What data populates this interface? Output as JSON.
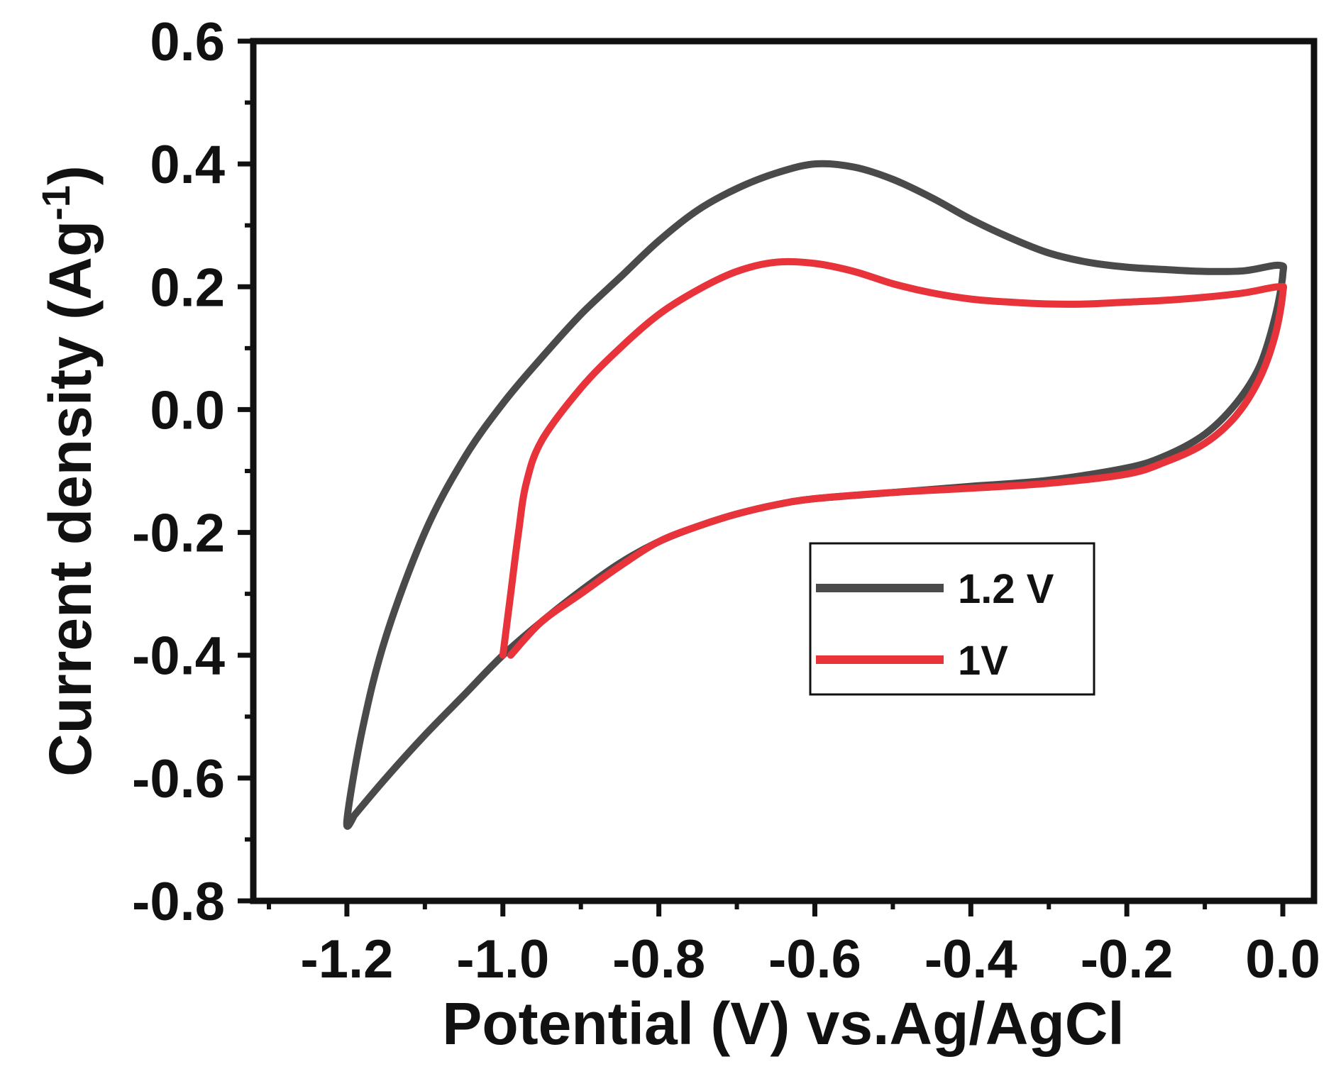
{
  "chart_data": {
    "type": "line",
    "title": "",
    "xlabel": "Potential (V) vs.Ag/AgCl",
    "ylabel": {
      "main": "Current density (Ag",
      "superscript": "-1",
      "close": ")"
    },
    "xlim": [
      -1.32,
      0.04
    ],
    "ylim": [
      -0.8,
      0.6
    ],
    "xticks": [
      -1.2,
      -1.0,
      -0.8,
      -0.6,
      -0.4,
      -0.2,
      0.0
    ],
    "xtick_labels": [
      "-1.2",
      "-1.0",
      "-0.8",
      "-0.6",
      "-0.4",
      "-0.2",
      "0.0"
    ],
    "yticks": [
      0.6,
      0.4,
      0.2,
      0.0,
      -0.2,
      -0.4,
      -0.6,
      -0.8
    ],
    "ytick_labels": [
      "0.6",
      "0.4",
      "0.2",
      "0.0",
      "-0.2",
      "-0.4",
      "-0.6",
      "-0.8"
    ],
    "grid": false,
    "legend_position": "right",
    "series": [
      {
        "name": "1.2 V",
        "color": "#4a4a4a",
        "points": [
          [
            -1.19,
            -0.66
          ],
          [
            -1.15,
            -0.6
          ],
          [
            -1.1,
            -0.53
          ],
          [
            -1.05,
            -0.465
          ],
          [
            -1.0,
            -0.4
          ],
          [
            -0.95,
            -0.345
          ],
          [
            -0.9,
            -0.295
          ],
          [
            -0.85,
            -0.25
          ],
          [
            -0.8,
            -0.215
          ],
          [
            -0.75,
            -0.19
          ],
          [
            -0.7,
            -0.17
          ],
          [
            -0.65,
            -0.155
          ],
          [
            -0.6,
            -0.145
          ],
          [
            -0.5,
            -0.135
          ],
          [
            -0.4,
            -0.125
          ],
          [
            -0.3,
            -0.115
          ],
          [
            -0.2,
            -0.095
          ],
          [
            -0.15,
            -0.075
          ],
          [
            -0.1,
            -0.04
          ],
          [
            -0.06,
            0.01
          ],
          [
            -0.03,
            0.07
          ],
          [
            -0.01,
            0.15
          ],
          [
            0.0,
            0.22
          ],
          [
            -0.005,
            0.235
          ],
          [
            -0.05,
            0.226
          ],
          [
            -0.1,
            0.225
          ],
          [
            -0.15,
            0.228
          ],
          [
            -0.2,
            0.232
          ],
          [
            -0.25,
            0.24
          ],
          [
            -0.3,
            0.255
          ],
          [
            -0.35,
            0.28
          ],
          [
            -0.4,
            0.31
          ],
          [
            -0.45,
            0.345
          ],
          [
            -0.5,
            0.375
          ],
          [
            -0.55,
            0.395
          ],
          [
            -0.6,
            0.4
          ],
          [
            -0.65,
            0.385
          ],
          [
            -0.7,
            0.36
          ],
          [
            -0.75,
            0.325
          ],
          [
            -0.8,
            0.275
          ],
          [
            -0.85,
            0.215
          ],
          [
            -0.9,
            0.155
          ],
          [
            -0.95,
            0.085
          ],
          [
            -1.0,
            0.01
          ],
          [
            -1.05,
            -0.08
          ],
          [
            -1.1,
            -0.2
          ],
          [
            -1.15,
            -0.37
          ],
          [
            -1.18,
            -0.52
          ],
          [
            -1.2,
            -0.67
          ],
          [
            -1.19,
            -0.66
          ]
        ]
      },
      {
        "name": "1V",
        "color": "#e8333a",
        "points": [
          [
            -0.99,
            -0.4
          ],
          [
            -0.95,
            -0.345
          ],
          [
            -0.9,
            -0.3
          ],
          [
            -0.85,
            -0.255
          ],
          [
            -0.8,
            -0.215
          ],
          [
            -0.75,
            -0.19
          ],
          [
            -0.7,
            -0.17
          ],
          [
            -0.65,
            -0.155
          ],
          [
            -0.6,
            -0.145
          ],
          [
            -0.5,
            -0.135
          ],
          [
            -0.4,
            -0.128
          ],
          [
            -0.3,
            -0.12
          ],
          [
            -0.2,
            -0.105
          ],
          [
            -0.15,
            -0.085
          ],
          [
            -0.1,
            -0.055
          ],
          [
            -0.06,
            -0.01
          ],
          [
            -0.03,
            0.05
          ],
          [
            -0.01,
            0.12
          ],
          [
            0.0,
            0.19
          ],
          [
            -0.005,
            0.2
          ],
          [
            -0.05,
            0.19
          ],
          [
            -0.1,
            0.183
          ],
          [
            -0.15,
            0.178
          ],
          [
            -0.2,
            0.175
          ],
          [
            -0.25,
            0.172
          ],
          [
            -0.3,
            0.172
          ],
          [
            -0.35,
            0.175
          ],
          [
            -0.4,
            0.18
          ],
          [
            -0.45,
            0.19
          ],
          [
            -0.5,
            0.205
          ],
          [
            -0.55,
            0.225
          ],
          [
            -0.6,
            0.238
          ],
          [
            -0.65,
            0.24
          ],
          [
            -0.7,
            0.225
          ],
          [
            -0.75,
            0.195
          ],
          [
            -0.8,
            0.155
          ],
          [
            -0.85,
            0.1
          ],
          [
            -0.9,
            0.035
          ],
          [
            -0.95,
            -0.05
          ],
          [
            -0.97,
            -0.12
          ],
          [
            -0.98,
            -0.2
          ],
          [
            -0.99,
            -0.3
          ],
          [
            -1.0,
            -0.4
          ]
        ]
      }
    ]
  }
}
